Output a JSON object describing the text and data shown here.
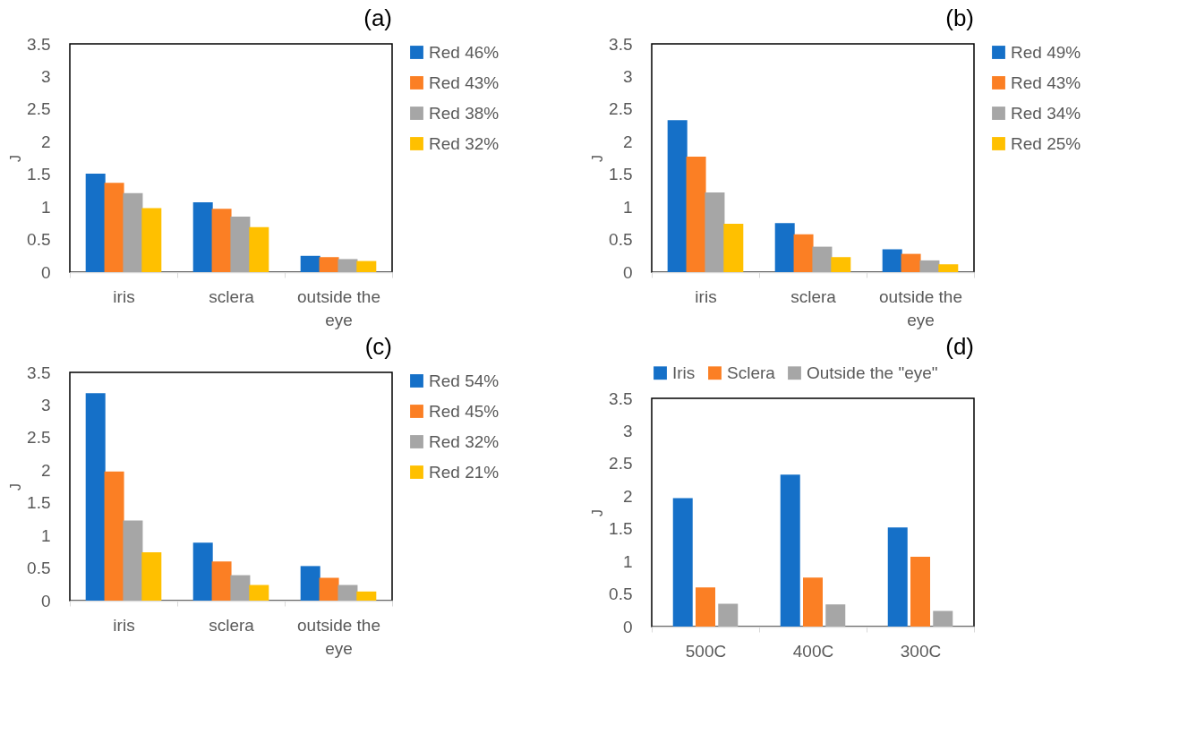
{
  "chart_data": [
    {
      "type": "bar",
      "title": "(a)",
      "ylabel": "J",
      "categories": [
        "iris",
        "sclera",
        "outside the eye"
      ],
      "ylim": [
        0,
        3.5
      ],
      "yticks": [
        0,
        0.5,
        1,
        1.5,
        2,
        2.5,
        3,
        3.5
      ],
      "grid": false,
      "legend": "right",
      "series": [
        {
          "name": "Red 46%",
          "color": "#1570c8",
          "values": [
            1.51,
            1.07,
            0.25
          ]
        },
        {
          "name": "Red 43%",
          "color": "#fb7f24",
          "values": [
            1.37,
            0.97,
            0.23
          ]
        },
        {
          "name": "Red 38%",
          "color": "#a6a6a6",
          "values": [
            1.21,
            0.85,
            0.2
          ]
        },
        {
          "name": "Red 32%",
          "color": "#ffc000",
          "values": [
            0.98,
            0.69,
            0.17
          ]
        }
      ]
    },
    {
      "type": "bar",
      "title": "(b)",
      "ylabel": "J",
      "categories": [
        "iris",
        "sclera",
        "outside the eye"
      ],
      "ylim": [
        0,
        3.5
      ],
      "yticks": [
        0,
        0.5,
        1,
        1.5,
        2,
        2.5,
        3,
        3.5
      ],
      "grid": false,
      "legend": "right",
      "series": [
        {
          "name": "Red 49%",
          "color": "#1570c8",
          "values": [
            2.33,
            0.75,
            0.35
          ]
        },
        {
          "name": "Red 43%",
          "color": "#fb7f24",
          "values": [
            1.77,
            0.58,
            0.28
          ]
        },
        {
          "name": "Red 34%",
          "color": "#a6a6a6",
          "values": [
            1.22,
            0.39,
            0.18
          ]
        },
        {
          "name": "Red 25%",
          "color": "#ffc000",
          "values": [
            0.74,
            0.23,
            0.12
          ]
        }
      ]
    },
    {
      "type": "bar",
      "title": "(c)",
      "ylabel": "J",
      "categories": [
        "iris",
        "sclera",
        "outside the eye"
      ],
      "ylim": [
        0,
        3.5
      ],
      "yticks": [
        0,
        0.5,
        1,
        1.5,
        2,
        2.5,
        3,
        3.5
      ],
      "grid": false,
      "legend": "right",
      "series": [
        {
          "name": "Red 54%",
          "color": "#1570c8",
          "values": [
            3.18,
            0.89,
            0.53
          ]
        },
        {
          "name": "Red 45%",
          "color": "#fb7f24",
          "values": [
            1.98,
            0.6,
            0.35
          ]
        },
        {
          "name": "Red 32%",
          "color": "#a6a6a6",
          "values": [
            1.23,
            0.39,
            0.24
          ]
        },
        {
          "name": "Red 21%",
          "color": "#ffc000",
          "values": [
            0.74,
            0.24,
            0.14
          ]
        }
      ]
    },
    {
      "type": "bar",
      "title": "(d)",
      "ylabel": "J",
      "categories": [
        "500C",
        "400C",
        "300C"
      ],
      "ylim": [
        0,
        3.5
      ],
      "yticks": [
        0,
        0.5,
        1,
        1.5,
        2,
        2.5,
        3,
        3.5
      ],
      "grid": false,
      "legend": "top",
      "series": [
        {
          "name": "Iris",
          "color": "#1570c8",
          "values": [
            1.97,
            2.33,
            1.52
          ]
        },
        {
          "name": "Sclera",
          "color": "#fb7f24",
          "values": [
            0.6,
            0.75,
            1.07
          ]
        },
        {
          "name": "Outside the \"eye\"",
          "color": "#a6a6a6",
          "values": [
            0.35,
            0.34,
            0.24
          ]
        }
      ]
    }
  ]
}
